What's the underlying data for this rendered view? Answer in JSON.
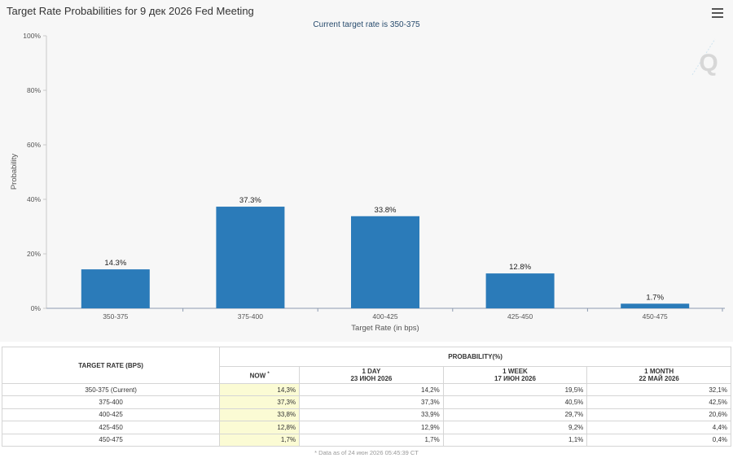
{
  "header": {
    "title": "Target Rate Probabilities for 9 дек 2026 Fed Meeting",
    "subtitle": "Current target rate is 350-375",
    "menu_icon": "hamburger-menu-icon",
    "watermark": "Q"
  },
  "chart_data": {
    "type": "bar",
    "categories": [
      "350-375",
      "375-400",
      "400-425",
      "425-450",
      "450-475"
    ],
    "values": [
      14.3,
      37.3,
      33.8,
      12.8,
      1.7
    ],
    "data_labels": [
      "14.3%",
      "37.3%",
      "33.8%",
      "12.8%",
      "1.7%"
    ],
    "xlabel": "Target Rate (in bps)",
    "ylabel": "Probability",
    "ylim": [
      0,
      100
    ],
    "yticks": [
      0,
      20,
      40,
      60,
      80,
      100
    ],
    "ytick_labels": [
      "0%",
      "20%",
      "40%",
      "60%",
      "80%",
      "100%"
    ],
    "bar_color": "#2b7bb9",
    "legend": "none"
  },
  "table": {
    "col_header": "TARGET RATE (BPS)",
    "group_header": "PROBABILITY(%)",
    "columns": [
      {
        "line1": "NOW",
        "line2": "",
        "marker": "*"
      },
      {
        "line1": "1 DAY",
        "line2": "23 ИЮН 2026",
        "marker": ""
      },
      {
        "line1": "1 WEEK",
        "line2": "17 ИЮН 2026",
        "marker": ""
      },
      {
        "line1": "1 MONTH",
        "line2": "22 МАЙ 2026",
        "marker": ""
      }
    ],
    "rows": [
      {
        "rate": "350-375 (Current)",
        "values": [
          "14,3%",
          "14,2%",
          "19,5%",
          "32,1%"
        ]
      },
      {
        "rate": "375-400",
        "values": [
          "37,3%",
          "37,3%",
          "40,5%",
          "42,5%"
        ]
      },
      {
        "rate": "400-425",
        "values": [
          "33,8%",
          "33,9%",
          "29,7%",
          "20,6%"
        ]
      },
      {
        "rate": "425-450",
        "values": [
          "12,8%",
          "12,9%",
          "9,2%",
          "4,4%"
        ]
      },
      {
        "rate": "450-475",
        "values": [
          "1,7%",
          "1,7%",
          "1,1%",
          "0,4%"
        ]
      }
    ],
    "footnote": "* Data as of 24 июн 2026 05:45:39 CT",
    "now_highlight_color": "#fbfbd4"
  }
}
